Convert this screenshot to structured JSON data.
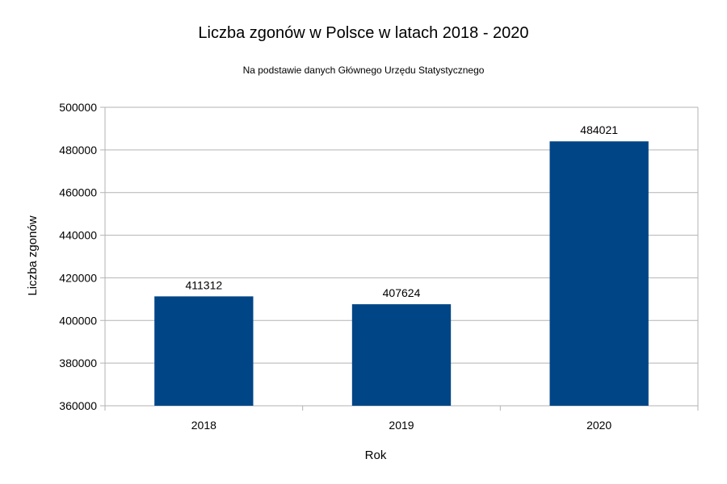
{
  "chart_data": {
    "type": "bar",
    "title": "Liczba zgonów w Polsce w latach 2018 - 2020",
    "subtitle": "Na podstawie danych Głównego Urzędu Statystycznego",
    "xlabel": "Rok",
    "ylabel": "Liczba zgonów",
    "categories": [
      "2018",
      "2019",
      "2020"
    ],
    "values": [
      411312,
      407624,
      484021
    ],
    "ylim": [
      360000,
      500000
    ],
    "y_ticks": [
      360000,
      380000,
      400000,
      420000,
      440000,
      460000,
      480000,
      500000
    ],
    "grid": true,
    "legend": "none",
    "bar_color": "#004586",
    "grid_color": "#b3b3b3"
  }
}
